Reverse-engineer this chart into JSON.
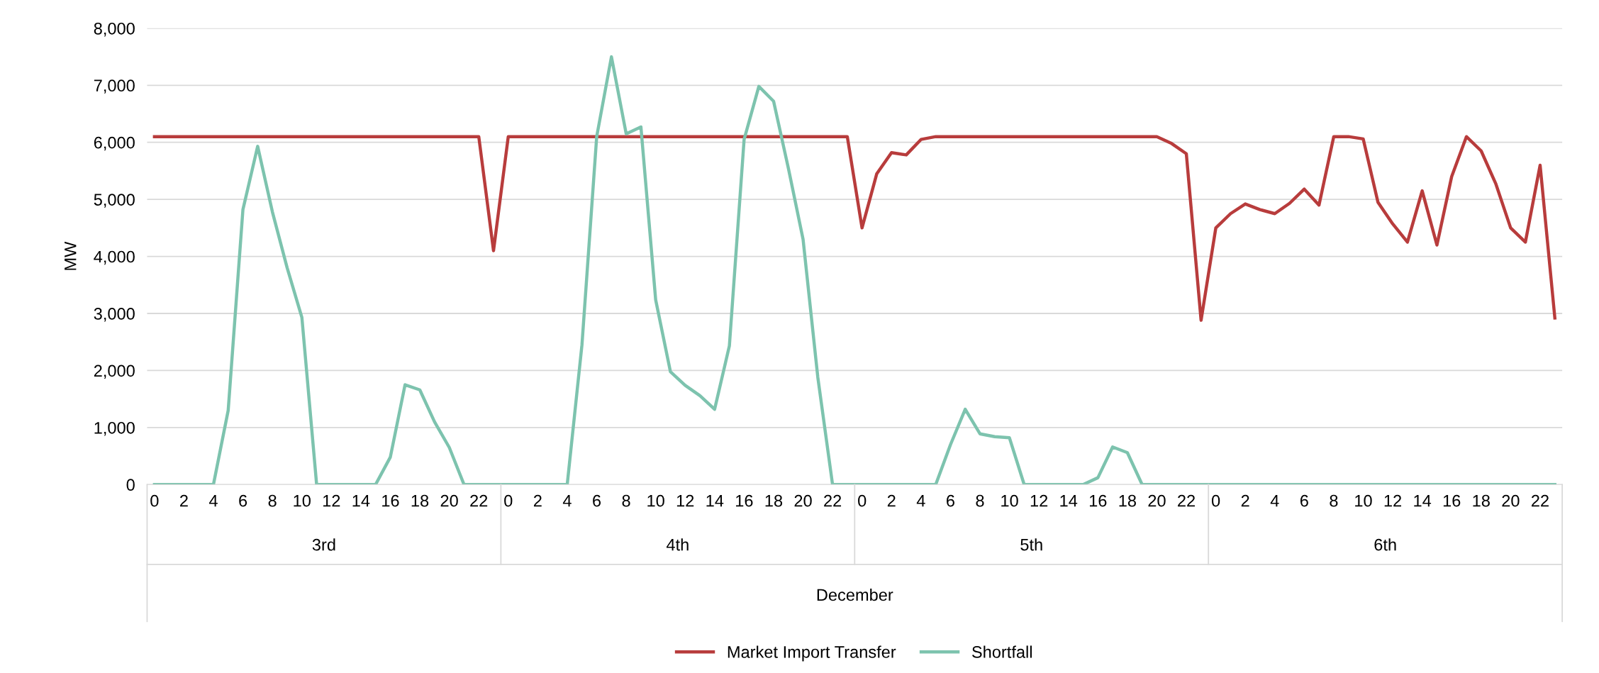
{
  "chart_data": {
    "type": "line",
    "ylabel": "MW",
    "categories": [
      "0",
      null,
      "2",
      null,
      "4",
      null,
      "6",
      null,
      "8",
      null,
      "10",
      null,
      "12",
      null,
      "14",
      null,
      "16",
      null,
      "18",
      null,
      "20",
      null,
      "22",
      null,
      "0",
      null,
      "2",
      null,
      "4",
      null,
      "6",
      null,
      "8",
      null,
      "10",
      null,
      "12",
      null,
      "14",
      null,
      "16",
      null,
      "18",
      null,
      "20",
      null,
      "22",
      null,
      "0",
      null,
      "2",
      null,
      "4",
      null,
      "6",
      null,
      "8",
      null,
      "10",
      null,
      "12",
      null,
      "14",
      null,
      "16",
      null,
      "18",
      null,
      "20",
      null,
      "22",
      null,
      "0",
      null,
      "2",
      null,
      "4",
      null,
      "6",
      null,
      "8",
      null,
      "10",
      null,
      "12",
      null,
      "14",
      null,
      "16",
      null,
      "18",
      null,
      "20",
      null,
      "22",
      null
    ],
    "series": [
      {
        "name": "Market Import Transfer",
        "color": "#b83c3c",
        "values": [
          6100,
          6100,
          6100,
          6100,
          6100,
          6100,
          6100,
          6100,
          6100,
          6100,
          6100,
          6100,
          6100,
          6100,
          6100,
          6100,
          6100,
          6100,
          6100,
          6100,
          6100,
          6100,
          6100,
          4100,
          6100,
          6100,
          6100,
          6100,
          6100,
          6100,
          6100,
          6100,
          6100,
          6100,
          6100,
          6100,
          6100,
          6100,
          6100,
          6100,
          6100,
          6100,
          6100,
          6100,
          6100,
          6100,
          6100,
          6100,
          4500,
          5450,
          5820,
          5780,
          6050,
          6100,
          6100,
          6100,
          6100,
          6100,
          6100,
          6100,
          6100,
          6100,
          6100,
          6100,
          6100,
          6100,
          6100,
          6100,
          6100,
          5980,
          5800,
          2880,
          4500,
          4750,
          4920,
          4820,
          4750,
          4930,
          5180,
          4900,
          6100,
          6100,
          6060,
          4950,
          4570,
          4250,
          5150,
          4200,
          5400,
          6100,
          5850,
          5270,
          4500,
          4250,
          5600,
          2920
        ]
      },
      {
        "name": "Shortfall",
        "color": "#7dc3ae",
        "values": [
          0,
          0,
          0,
          0,
          0,
          1300,
          4820,
          5930,
          4780,
          3800,
          2930,
          0,
          0,
          0,
          0,
          0,
          480,
          1750,
          1660,
          1100,
          650,
          0,
          0,
          0,
          0,
          0,
          0,
          0,
          0,
          2450,
          6100,
          7500,
          6150,
          6270,
          3240,
          1980,
          1740,
          1560,
          1320,
          2430,
          6050,
          6980,
          6720,
          5550,
          4300,
          1880,
          0,
          0,
          0,
          0,
          0,
          0,
          0,
          0,
          700,
          1320,
          890,
          840,
          820,
          0,
          0,
          0,
          0,
          0,
          120,
          660,
          560,
          0,
          0,
          0,
          0,
          0,
          0,
          0,
          0,
          0,
          0,
          0,
          0,
          0,
          0,
          0,
          0,
          0,
          0,
          0,
          0,
          0,
          0,
          0,
          0,
          0,
          0,
          0,
          0,
          0
        ]
      }
    ],
    "ylim": [
      0,
      8000
    ],
    "yticks": [
      {
        "value": 0,
        "label": "0"
      },
      {
        "value": 1000,
        "label": "1,000"
      },
      {
        "value": 2000,
        "label": "2,000"
      },
      {
        "value": 3000,
        "label": "3,000"
      },
      {
        "value": 4000,
        "label": "4,000"
      },
      {
        "value": 5000,
        "label": "5,000"
      },
      {
        "value": 6000,
        "label": "6,000"
      },
      {
        "value": 7000,
        "label": "7,000"
      },
      {
        "value": 8000,
        "label": "8,000"
      }
    ],
    "annotations": [
      "3rd",
      "4th",
      "5th",
      "6th",
      "December"
    ],
    "grid": "y",
    "legend": "bottom",
    "marker": "none",
    "line_style": "solid"
  }
}
